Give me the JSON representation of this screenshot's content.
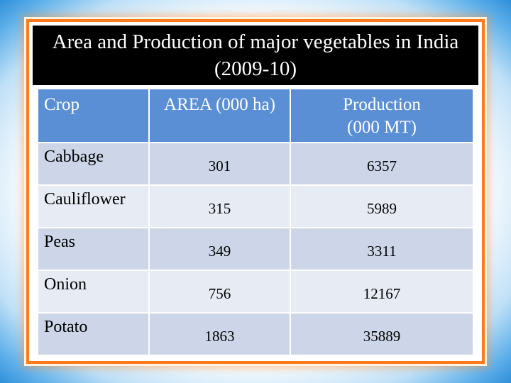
{
  "slide": {
    "title": "Area and Production of major vegetables in India (2009-10)"
  },
  "table": {
    "headers": [
      "Crop",
      "AREA (000 ha)",
      "Production\n(000 MT)"
    ],
    "rows": [
      {
        "crop": "Cabbage",
        "area": "301",
        "production": "6357"
      },
      {
        "crop": "Cauliflower",
        "area": "315",
        "production": "5989"
      },
      {
        "crop": "Peas",
        "area": "349",
        "production": "3311"
      },
      {
        "crop": "Onion",
        "area": "756",
        "production": "12167"
      },
      {
        "crop": "Potato",
        "area": "1863",
        "production": "35889"
      }
    ]
  },
  "colors": {
    "header_bg": "#5a8fd6",
    "row_odd": "#cdd6e8",
    "row_even": "#e7ebf4",
    "frame_border": "#ff7a1a",
    "title_bg": "#000000",
    "outer_gradient": "#2f8fd9"
  }
}
